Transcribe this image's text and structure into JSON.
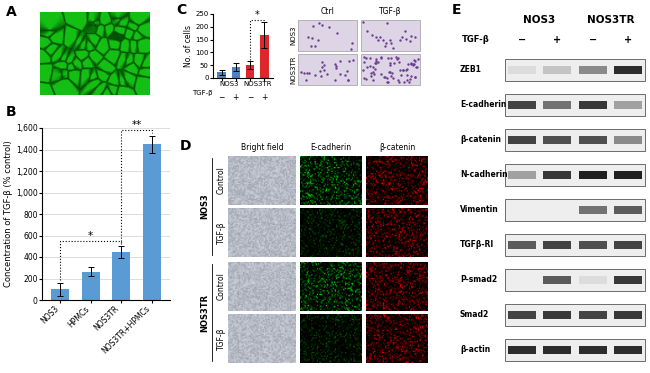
{
  "panel_labels": [
    "A",
    "B",
    "C",
    "D",
    "E"
  ],
  "chart_data": [
    {
      "type": "bar",
      "categories": [
        "NOS3",
        "HPMCs",
        "NOS3TR",
        "NOS3TR+HPMCs"
      ],
      "values": [
        100,
        265,
        445,
        1450
      ],
      "errors": [
        60,
        40,
        55,
        80
      ],
      "color": "#5b9bd5",
      "ylabel": "Concentration of TGF-β (% control)",
      "ylim": [
        0,
        1600
      ],
      "yticks": [
        0,
        200,
        400,
        600,
        800,
        {
          "value": 1000,
          "label": "1,000"
        },
        {
          "value": 1200,
          "label": "1,200"
        },
        {
          "value": 1400,
          "label": "1,400"
        },
        {
          "value": 1600,
          "label": "1,600"
        }
      ],
      "grid": true,
      "annotations": [
        {
          "text": "*",
          "between": [
            0,
            2
          ]
        },
        {
          "text": "**",
          "between": [
            2,
            3
          ]
        }
      ]
    },
    {
      "type": "bar",
      "categories": [
        "−",
        "+",
        "−",
        "+"
      ],
      "groups": [
        "NOS3",
        "NOS3TR"
      ],
      "group_title": "TGF-β",
      "values": [
        22,
        42,
        52,
        168
      ],
      "errors": [
        10,
        15,
        15,
        50
      ],
      "colors": [
        "#4f81bd",
        "#4f81bd",
        "#e0262b",
        "#e0262b"
      ],
      "ylabel": "No. of cells",
      "ylim": [
        0,
        250
      ],
      "yticks": [
        0,
        50,
        100,
        150,
        200,
        250
      ],
      "grid": false,
      "annotations": [
        {
          "text": "*",
          "between": [
            2,
            3
          ]
        }
      ]
    }
  ],
  "panel_C_micrographs": {
    "columns": [
      "Ctrl",
      "TGF-β"
    ],
    "rows": [
      "NOS3",
      "NOS3TR"
    ]
  },
  "panel_D": {
    "columns": [
      "Bright field",
      "E-cadherin",
      "β-catenin"
    ],
    "groups": [
      {
        "label": "NOS3",
        "rows": [
          "Control",
          "TGF-β"
        ]
      },
      {
        "label": "NOS3TR",
        "rows": [
          "Control",
          "TGF-β"
        ]
      }
    ]
  },
  "panel_E": {
    "groups": [
      "NOS3",
      "NOS3TR"
    ],
    "treatment_label": "TGF-β",
    "lanes": [
      "−",
      "+",
      "−",
      "+"
    ],
    "rows": [
      {
        "label": "ZEB1",
        "band_intensity": [
          0.15,
          0.25,
          0.5,
          0.9
        ]
      },
      {
        "label": "E-cadherin",
        "band_intensity": [
          0.8,
          0.6,
          0.85,
          0.4
        ]
      },
      {
        "label": "β-catenin",
        "band_intensity": [
          0.8,
          0.75,
          0.75,
          0.5
        ]
      },
      {
        "label": "N-cadherin",
        "band_intensity": [
          0.4,
          0.85,
          0.95,
          0.95
        ]
      },
      {
        "label": "Vimentin",
        "band_intensity": [
          0,
          0,
          0.6,
          0.7
        ]
      },
      {
        "label": "TGFβ-RI",
        "band_intensity": [
          0.7,
          0.8,
          0.75,
          0.8
        ]
      },
      {
        "label": "P-smad2",
        "band_intensity": [
          0,
          0.7,
          0.15,
          0.85
        ]
      },
      {
        "label": "Smad2",
        "band_intensity": [
          0.8,
          0.85,
          0.8,
          0.85
        ]
      },
      {
        "label": "β-actin",
        "band_intensity": [
          0.9,
          0.9,
          0.9,
          0.9
        ]
      }
    ]
  }
}
